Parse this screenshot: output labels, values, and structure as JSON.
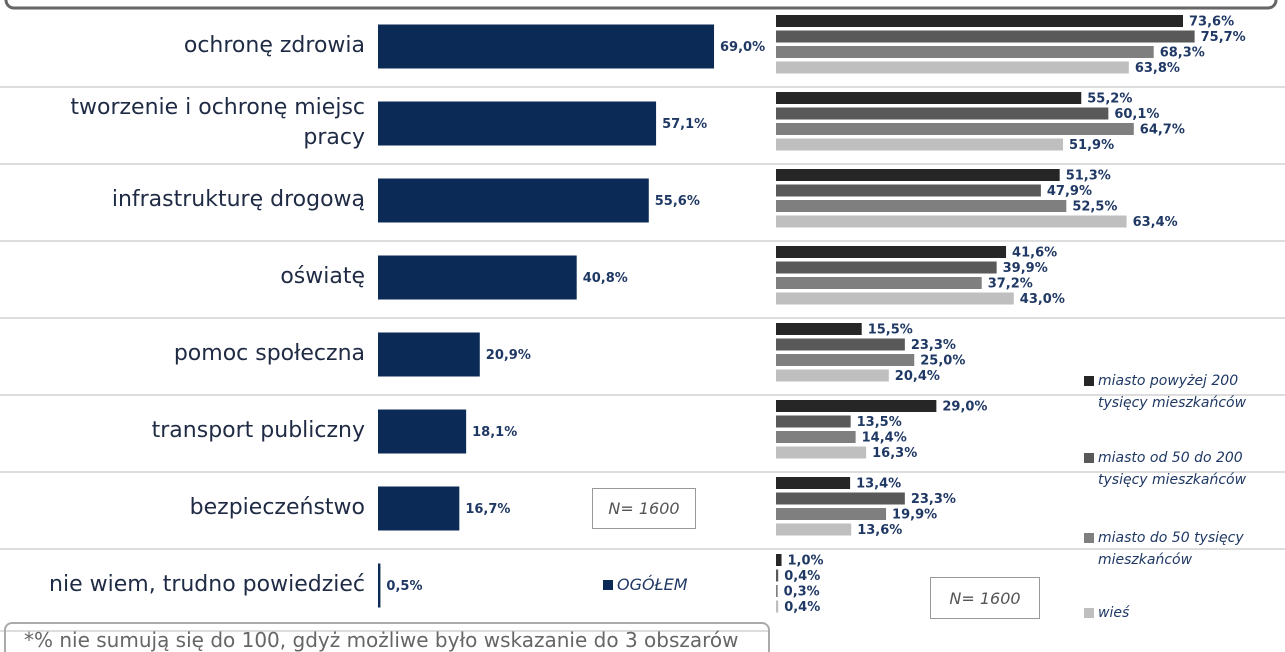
{
  "chart_data": [
    {
      "type": "bar",
      "orientation": "horizontal",
      "categories": [
        "ochronę zdrowia",
        "tworzenie i ochronę miejsc pracy",
        "infrastrukturę drogową",
        "oświatę",
        "pomoc społeczna",
        "transport publiczny",
        "bezpieczeństwo",
        "nie wiem, trudno powiedzieć"
      ],
      "series": [
        {
          "name": "OGÓŁEM",
          "color": "#0b2a55",
          "values": [
            69.0,
            57.1,
            55.6,
            40.8,
            20.9,
            18.1,
            16.7,
            0.5
          ],
          "value_labels": [
            "69,0%",
            "57,1%",
            "55,6%",
            "40,8%",
            "20,9%",
            "18,1%",
            "16,7%",
            "0,5%"
          ]
        }
      ],
      "xlim": [
        0,
        100
      ],
      "annotations": [
        "N= 1600"
      ],
      "footnote": "*% nie sumują się do 100, gdyż możliwe było wskazanie do 3 obszarów"
    },
    {
      "type": "bar",
      "orientation": "horizontal",
      "series": [
        {
          "name": "miasto powyżej 200 tysięcy mieszkańców",
          "color": "#262626",
          "values": [
            73.6,
            55.2,
            51.3,
            41.6,
            15.5,
            29.0,
            13.4,
            1.0
          ],
          "value_labels": [
            "73,6%",
            "55,2%",
            "51,3%",
            "41,6%",
            "15,5%",
            "29,0%",
            "13,4%",
            "1,0%"
          ]
        },
        {
          "name": "miasto od 50 do 200 tysięcy mieszkańców",
          "color": "#595959",
          "values": [
            75.7,
            60.1,
            47.9,
            39.9,
            23.3,
            13.5,
            23.3,
            0.4
          ],
          "value_labels": [
            "75,7%",
            "60,1%",
            "47,9%",
            "39,9%",
            "23,3%",
            "13,5%",
            "23,3%",
            "0,4%"
          ]
        },
        {
          "name": "miasto do 50 tysięcy mieszkańców",
          "color": "#7f7f7f",
          "values": [
            68.3,
            64.7,
            52.5,
            37.2,
            25.0,
            14.4,
            19.9,
            0.3
          ],
          "value_labels": [
            "68,3%",
            "64,7%",
            "52,5%",
            "37,2%",
            "25,0%",
            "14,4%",
            "19,9%",
            "0,3%"
          ]
        },
        {
          "name": "wieś",
          "color": "#bfbfbf",
          "values": [
            63.8,
            51.9,
            63.4,
            43.0,
            20.4,
            16.3,
            13.6,
            0.4
          ],
          "value_labels": [
            "63,8%",
            "51,9%",
            "63,4%",
            "43,0%",
            "20,4%",
            "16,3%",
            "13,6%",
            "0,4%"
          ]
        }
      ],
      "xlim": [
        0,
        100
      ],
      "annotations": [
        "N= 1600"
      ]
    }
  ]
}
